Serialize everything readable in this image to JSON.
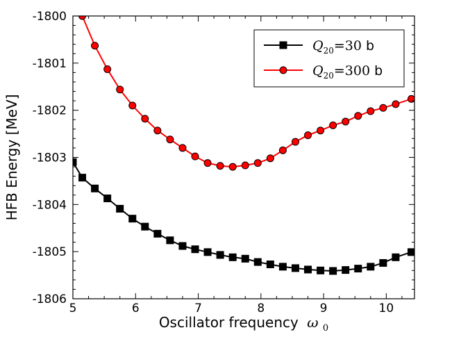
{
  "chart_data": {
    "type": "line",
    "title": "",
    "xlabel": "Oscillator frequency",
    "xlabel_symbol": "ω",
    "xlabel_subscript": "0",
    "ylabel": "HFB Energy [MeV]",
    "xlim": [
      5.0,
      10.45
    ],
    "ylim": [
      -1806,
      -1800
    ],
    "xticks": [
      5,
      6,
      7,
      8,
      9,
      10
    ],
    "yticks": [
      -1806,
      -1805,
      -1804,
      -1803,
      -1802,
      -1801,
      -1800
    ],
    "xtick_labels": [
      "5",
      "6",
      "7",
      "8",
      "9",
      "10"
    ],
    "ytick_labels": [
      "-1806",
      "-1805",
      "-1804",
      "-1803",
      "-1802",
      "-1801",
      "-1800"
    ],
    "grid": false,
    "legend_position": "top-right",
    "series": [
      {
        "name_symbol": "Q",
        "name_subscript": "20",
        "name_value": "=30",
        "name_unit": " b",
        "color": "#000000",
        "marker": "square",
        "x": [
          5.0,
          5.15,
          5.35,
          5.55,
          5.75,
          5.95,
          6.15,
          6.35,
          6.55,
          6.75,
          6.95,
          7.15,
          7.35,
          7.55,
          7.75,
          7.95,
          8.15,
          8.35,
          8.55,
          8.75,
          8.95,
          9.15,
          9.35,
          9.55,
          9.75,
          9.95,
          10.15,
          10.4
        ],
        "y": [
          -1803.1,
          -1803.43,
          -1803.66,
          -1803.87,
          -1804.09,
          -1804.3,
          -1804.47,
          -1804.62,
          -1804.76,
          -1804.88,
          -1804.95,
          -1805.01,
          -1805.07,
          -1805.12,
          -1805.15,
          -1805.22,
          -1805.27,
          -1805.32,
          -1805.35,
          -1805.38,
          -1805.4,
          -1805.41,
          -1805.39,
          -1805.36,
          -1805.32,
          -1805.24,
          -1805.12,
          -1805.01
        ]
      },
      {
        "name_symbol": "Q",
        "name_subscript": "20",
        "name_value": "=300",
        "name_unit": " b",
        "color": "#ff0000",
        "marker": "circle",
        "x": [
          5.15,
          5.35,
          5.55,
          5.75,
          5.95,
          6.15,
          6.35,
          6.55,
          6.75,
          6.95,
          7.15,
          7.35,
          7.55,
          7.75,
          7.95,
          8.15,
          8.35,
          8.55,
          8.75,
          8.95,
          9.15,
          9.35,
          9.55,
          9.75,
          9.95,
          10.15,
          10.4
        ],
        "y": [
          -1800.0,
          -1800.63,
          -1801.13,
          -1801.56,
          -1801.9,
          -1802.18,
          -1802.43,
          -1802.62,
          -1802.8,
          -1802.98,
          -1803.12,
          -1803.18,
          -1803.2,
          -1803.17,
          -1803.12,
          -1803.02,
          -1802.85,
          -1802.67,
          -1802.53,
          -1802.43,
          -1802.32,
          -1802.24,
          -1802.12,
          -1802.02,
          -1801.95,
          -1801.87,
          -1801.76
        ]
      }
    ]
  }
}
